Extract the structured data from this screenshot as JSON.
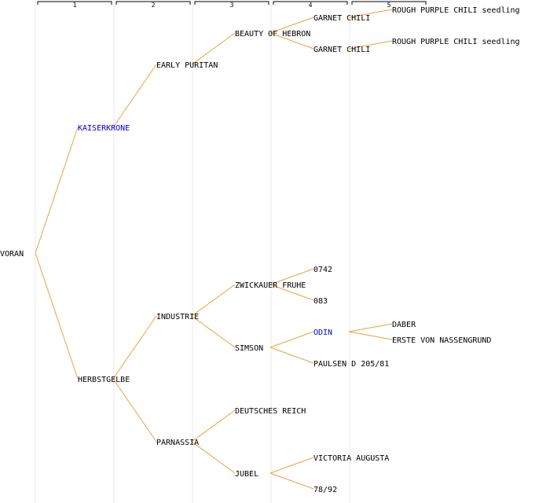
{
  "generations": [
    "1",
    "2",
    "3",
    "4",
    "5"
  ],
  "colors": {
    "link": "#f0a040",
    "text": "#000000",
    "highlight": "#0000cc",
    "grid": "#e8e8e8",
    "bracket": "#000000"
  },
  "tree": {
    "name": "VORAN",
    "children": [
      {
        "name": "KAISERKRONE",
        "highlight": true,
        "children": [
          {
            "name": "EARLY PURITAN",
            "children": [
              {
                "name": "BEAUTY OF HEBRON",
                "children": [
                  {
                    "name": "GARNET CHILI",
                    "children": [
                      {
                        "name": "ROUGH PURPLE CHILI seedling"
                      }
                    ]
                  },
                  {
                    "name": "GARNET CHILI",
                    "children": [
                      {
                        "name": "ROUGH PURPLE CHILI seedling"
                      }
                    ]
                  }
                ]
              }
            ]
          }
        ]
      },
      {
        "name": "HERBSTGELBE",
        "children": [
          {
            "name": "INDUSTRIE",
            "children": [
              {
                "name": "ZWICKAUER FRUHE",
                "children": [
                  {
                    "name": "0742"
                  },
                  {
                    "name": "083"
                  }
                ]
              },
              {
                "name": "SIMSON",
                "children": [
                  {
                    "name": "ODIN",
                    "highlight": true,
                    "children": [
                      {
                        "name": "DABER"
                      },
                      {
                        "name": "ERSTE VON NASSENGRUND"
                      }
                    ]
                  },
                  {
                    "name": "PAULSEN D 205/81"
                  }
                ]
              }
            ]
          },
          {
            "name": "PARNASSIA",
            "children": [
              {
                "name": "DEUTSCHES REICH"
              },
              {
                "name": "JUBEL",
                "children": [
                  {
                    "name": "VICTORIA AUGUSTA"
                  },
                  {
                    "name": "78/92"
                  }
                ]
              }
            ]
          }
        ]
      }
    ]
  }
}
